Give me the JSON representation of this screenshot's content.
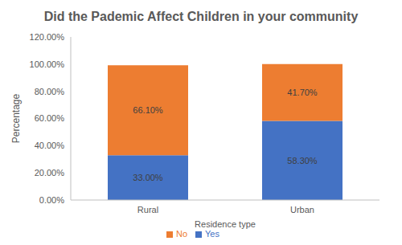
{
  "chart_data": {
    "type": "bar",
    "title": "Did the Pademic Affect Children in your community",
    "x_label": "Residence type",
    "y_label": "Percentage",
    "categories": [
      "Rural",
      "Urban"
    ],
    "series": [
      {
        "name": "Yes",
        "color": "#4472c4",
        "values": [
          33.0,
          58.3
        ],
        "value_labels": [
          "33.00%",
          "58.30%"
        ]
      },
      {
        "name": "No",
        "color": "#ed7d31",
        "values": [
          66.1,
          41.7
        ],
        "value_labels": [
          "66.10%",
          "41.70%"
        ]
      }
    ],
    "ylim": [
      0,
      120
    ],
    "yticks": [
      {
        "value": 0,
        "label": "0.00%"
      },
      {
        "value": 20,
        "label": "20.00%"
      },
      {
        "value": 40,
        "label": "40.00%"
      },
      {
        "value": 60,
        "label": "60.00%"
      },
      {
        "value": 80,
        "label": "80.00%"
      },
      {
        "value": 100,
        "label": "100.00%"
      },
      {
        "value": 120,
        "label": "120.00%"
      }
    ],
    "stacked": true,
    "data_labels": true,
    "grid": false,
    "legend": "bottom"
  }
}
